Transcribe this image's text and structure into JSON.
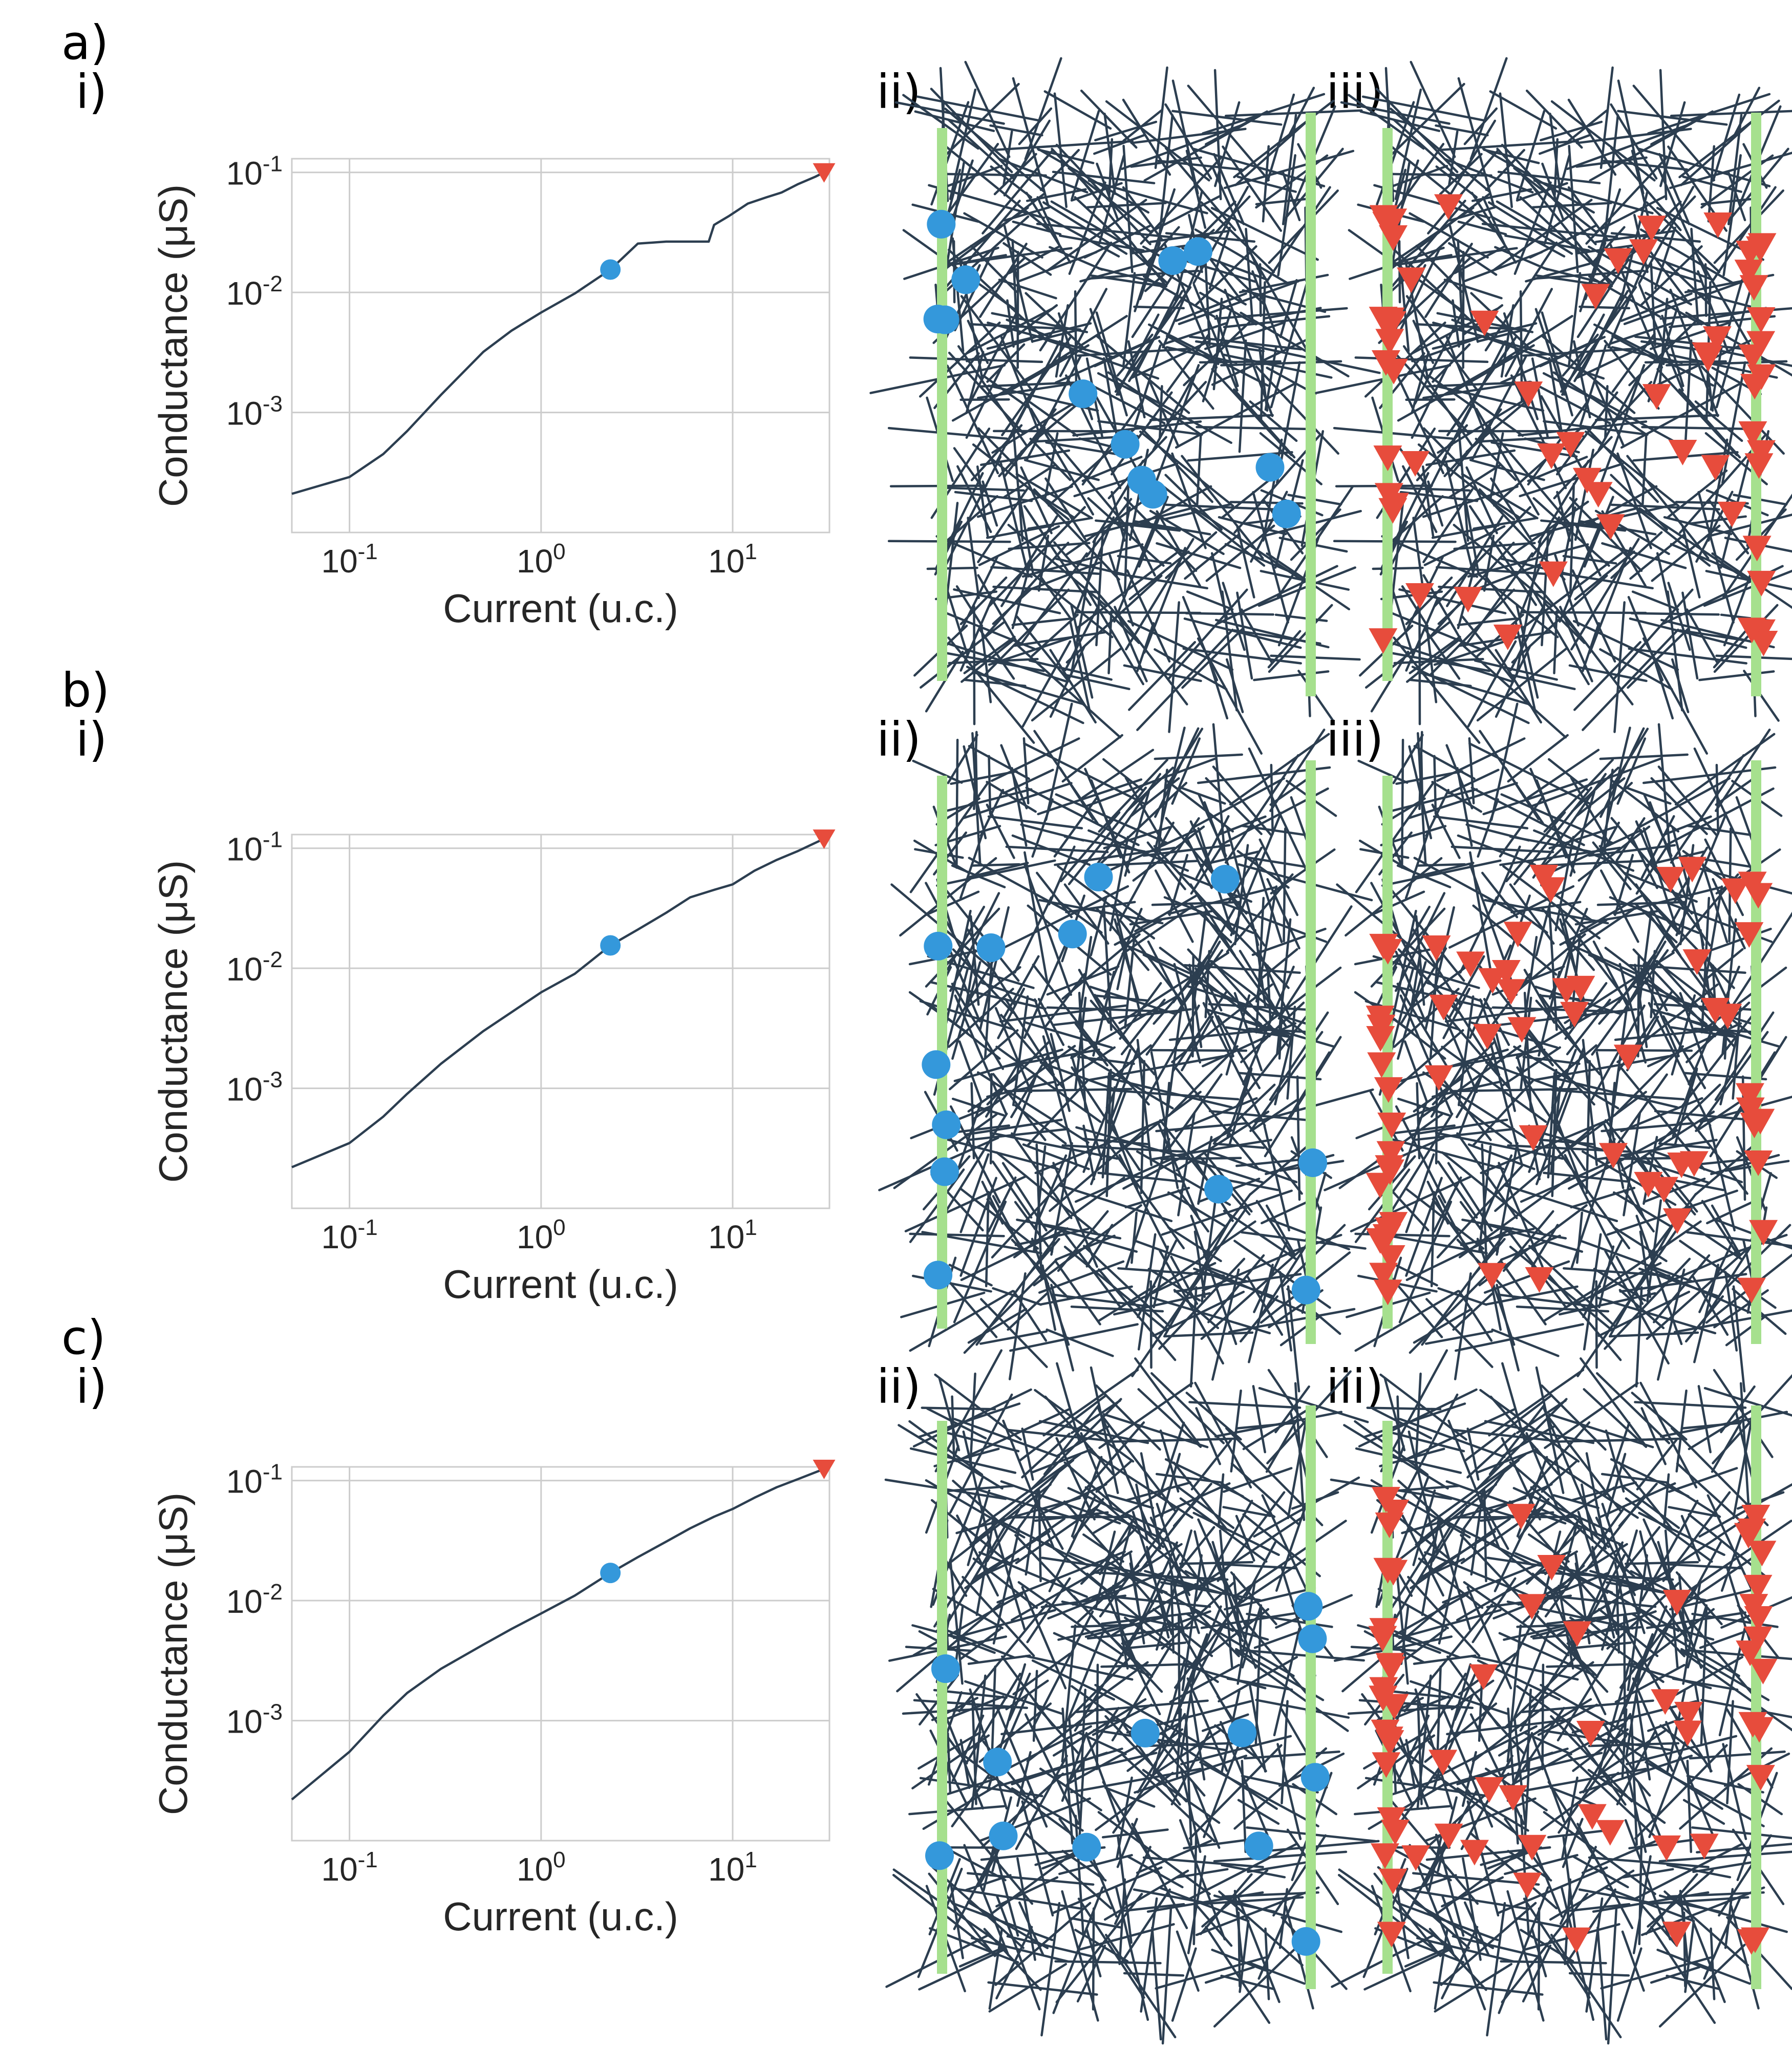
{
  "figure": {
    "rows": [
      {
        "label": "a)",
        "sub_labels": [
          "i)",
          "ii)",
          "iii)"
        ],
        "chart_data": {
          "type": "line",
          "xlabel": "Current (u.c.)",
          "ylabel": "Conductance (μS)",
          "xscale": "log",
          "yscale": "log",
          "xlim": [
            0.05,
            32
          ],
          "ylim": [
            0.0001,
            0.13
          ],
          "xticks": [
            {
              "value": 0.1,
              "label": "10-1"
            },
            {
              "value": 1,
              "label": "100"
            },
            {
              "value": 10,
              "label": "101"
            }
          ],
          "yticks": [
            {
              "value": 0.001,
              "label": "10-3"
            },
            {
              "value": 0.01,
              "label": "10-2"
            },
            {
              "value": 0.1,
              "label": "10-1"
            }
          ],
          "grid": true,
          "series": [
            {
              "x": [
                0.05,
                0.1,
                0.15,
                0.2,
                0.3,
                0.5,
                0.7,
                1.0,
                1.5,
                2.3,
                3.2,
                4.5,
                6.0,
                7.5,
                8.0,
                9.5,
                12,
                15,
                18,
                22,
                27,
                30
              ],
              "y": [
                0.00021,
                0.00029,
                0.00045,
                0.0007,
                0.0014,
                0.0032,
                0.0048,
                0.0068,
                0.0098,
                0.0155,
                0.0255,
                0.0265,
                0.0265,
                0.0265,
                0.0365,
                0.043,
                0.055,
                0.062,
                0.068,
                0.08,
                0.092,
                0.1
              ]
            }
          ],
          "markers": [
            {
              "shape": "circle",
              "color": "#3498db",
              "x": 2.3,
              "y": 0.0155
            },
            {
              "shape": "triangle-down",
              "color": "#e74c3c",
              "x": 30,
              "y": 0.1
            }
          ]
        }
      },
      {
        "label": "b)",
        "sub_labels": [
          "i)",
          "ii)",
          "iii)"
        ],
        "chart_data": {
          "type": "line",
          "xlabel": "Current (u.c.)",
          "ylabel": "Conductance (μS)",
          "xscale": "log",
          "yscale": "log",
          "xlim": [
            0.05,
            32
          ],
          "ylim": [
            0.0001,
            0.13
          ],
          "xticks": [
            {
              "value": 0.1,
              "label": "10-1"
            },
            {
              "value": 1,
              "label": "100"
            },
            {
              "value": 10,
              "label": "101"
            }
          ],
          "yticks": [
            {
              "value": 0.001,
              "label": "10-3"
            },
            {
              "value": 0.01,
              "label": "10-2"
            },
            {
              "value": 0.1,
              "label": "10-1"
            }
          ],
          "grid": true,
          "series": [
            {
              "x": [
                0.05,
                0.1,
                0.15,
                0.2,
                0.3,
                0.5,
                0.7,
                1.0,
                1.5,
                2.3,
                3.2,
                4.5,
                6.0,
                8.0,
                10,
                13,
                17,
                22,
                30
              ],
              "y": [
                0.00022,
                0.00035,
                0.00058,
                0.0009,
                0.0016,
                0.003,
                0.0043,
                0.0063,
                0.009,
                0.0155,
                0.021,
                0.029,
                0.039,
                0.045,
                0.05,
                0.065,
                0.08,
                0.095,
                0.12
              ]
            }
          ],
          "markers": [
            {
              "shape": "circle",
              "color": "#3498db",
              "x": 2.3,
              "y": 0.0155
            },
            {
              "shape": "triangle-down",
              "color": "#e74c3c",
              "x": 30,
              "y": 0.12
            }
          ]
        }
      },
      {
        "label": "c)",
        "sub_labels": [
          "i)",
          "ii)",
          "iii)"
        ],
        "chart_data": {
          "type": "line",
          "xlabel": "Current (u.c.)",
          "ylabel": "Conductance (μS)",
          "xscale": "log",
          "yscale": "log",
          "xlim": [
            0.05,
            32
          ],
          "ylim": [
            0.0001,
            0.13
          ],
          "xticks": [
            {
              "value": 0.1,
              "label": "10-1"
            },
            {
              "value": 1,
              "label": "100"
            },
            {
              "value": 10,
              "label": "101"
            }
          ],
          "yticks": [
            {
              "value": 0.001,
              "label": "10-3"
            },
            {
              "value": 0.01,
              "label": "10-2"
            },
            {
              "value": 0.1,
              "label": "10-1"
            }
          ],
          "grid": true,
          "series": [
            {
              "x": [
                0.05,
                0.1,
                0.15,
                0.2,
                0.3,
                0.5,
                0.7,
                1.0,
                1.5,
                2.3,
                3.2,
                4.5,
                6.0,
                8.0,
                10,
                13,
                17,
                22,
                30
              ],
              "y": [
                0.00022,
                0.00055,
                0.0011,
                0.0017,
                0.0027,
                0.0043,
                0.0058,
                0.0078,
                0.011,
                0.017,
                0.023,
                0.031,
                0.04,
                0.05,
                0.058,
                0.072,
                0.088,
                0.103,
                0.125
              ]
            }
          ],
          "markers": [
            {
              "shape": "circle",
              "color": "#3498db",
              "x": 2.3,
              "y": 0.017
            },
            {
              "shape": "triangle-down",
              "color": "#e74c3c",
              "x": 30,
              "y": 0.125
            }
          ]
        }
      }
    ],
    "colors": {
      "line": "#2c3e50",
      "grid": "#cccccc",
      "electrode": "#a6e08e",
      "wire": "#2c3e50",
      "circle_marker": "#3498db",
      "triangle_marker": "#e74c3c"
    }
  }
}
